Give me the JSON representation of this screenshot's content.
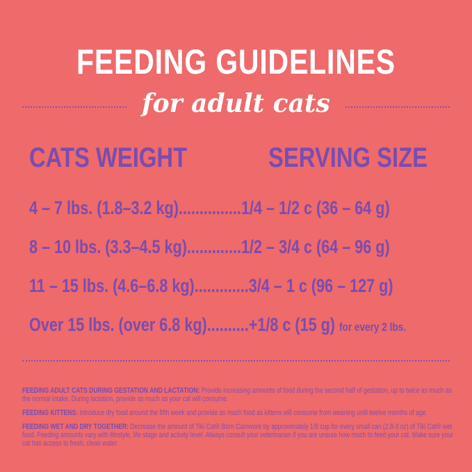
{
  "title": "FEEDING GUIDELINES",
  "subtitle": "for adult cats",
  "headers": {
    "weight": "CATS WEIGHT",
    "serving": "SERVING SIZE"
  },
  "rows": [
    {
      "weight": "4 – 7 lbs. (1.8–3.2 kg)...............",
      "serving": "1/4 – 1/2 c (36 – 64 g)",
      "note": ""
    },
    {
      "weight": "8 – 10 lbs. (3.3–4.5 kg).............",
      "serving": "1/2 – 3/4 c (64 – 96 g)",
      "note": ""
    },
    {
      "weight": "11 – 15 lbs. (4.6–6.8 kg).............",
      "serving": "3/4 – 1 c (96 – 127 g)",
      "note": ""
    },
    {
      "weight": "Over 15 lbs. (over 6.8 kg)..........",
      "serving": "+1/8 c (15 g)",
      "note": "for every 2 lbs."
    }
  ],
  "notes": [
    {
      "label": "FEEDING ADULT CATS DURING GESTATION AND LACTATION:",
      "text": " Provide increasing amounts of food during the second half of gestation, up to twice as much as the normal intake.  During lactation, provide as much as your cat will consume."
    },
    {
      "label": "FEEDING KITTENS:",
      "text": " Introduce dry food around the fifth week and provide as much food as kittens will consume from weaning until twelve months of age."
    },
    {
      "label": "FEEDING WET AND DRY TOGETHER:",
      "text": " Decrease the amount of Tiki Cat® Born Carnivore by approximately 1/8 cup for every small can (2.8-3 oz) of Tiki Cat® wet food. Feeding amounts vary with lifestyle, life stage and activity level.  Always consult your veterinarian if you are unsure how much to feed your cat. Make sure your cat has access to fresh, clean water."
    }
  ],
  "colors": {
    "background": "#ee6a6b",
    "accent": "#7a4cb0",
    "title": "#ffffff"
  }
}
